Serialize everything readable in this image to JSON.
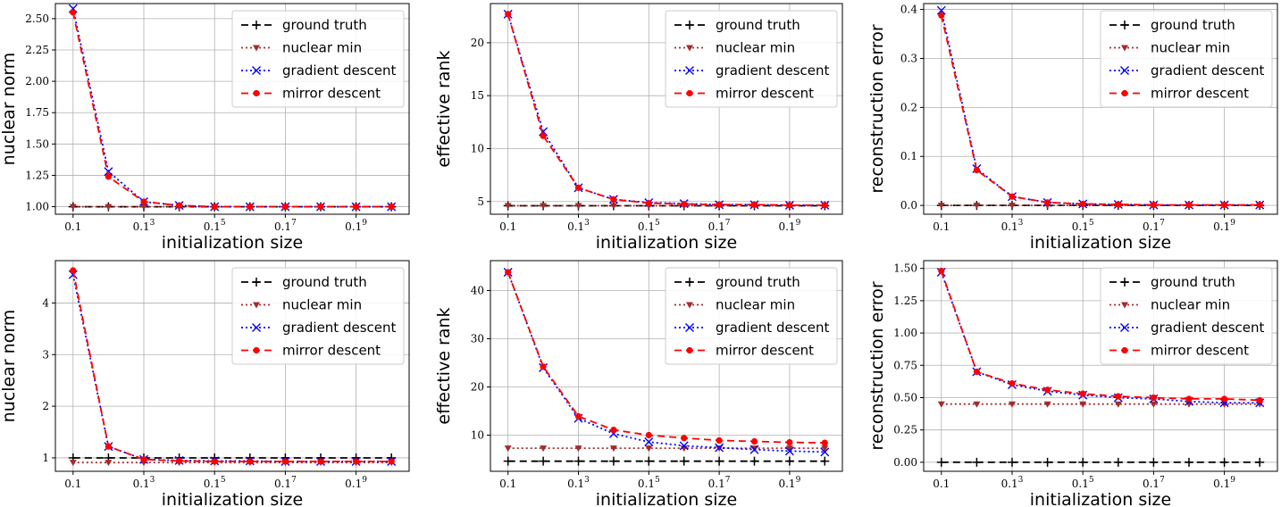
{
  "figure": {
    "legend_location": "top-right",
    "grid": true
  },
  "series_styles": [
    {
      "key": "gt",
      "color": "#000000",
      "dash": "8 5",
      "marker": "plus"
    },
    {
      "key": "nm",
      "color": "#a52a2a",
      "dash": "2 3",
      "marker": "triangle-down"
    },
    {
      "key": "gd",
      "color": "#0000ff",
      "dash": "2 3",
      "marker": "x"
    },
    {
      "key": "md",
      "color": "#ff0000",
      "dash": "8 5",
      "marker": "dot"
    }
  ],
  "chart_data": [
    {
      "type": "line",
      "xlabel": "initialization size",
      "ylabel": "nuclear norm",
      "xlim": [
        0.5,
        10.5
      ],
      "ylim": [
        0.94,
        2.62
      ],
      "yticks": [
        "1.00",
        "1.25",
        "1.50",
        "1.75",
        "2.00",
        "2.25",
        "2.50"
      ],
      "ytick_values": [
        1.0,
        1.25,
        1.5,
        1.75,
        2.0,
        2.25,
        2.5
      ],
      "xtick_values": [
        1,
        3,
        5,
        7,
        9
      ],
      "xticks": [
        {
          "base": "0.1",
          "exp": ""
        },
        {
          "base": "0.1",
          "exp": "3"
        },
        {
          "base": "0.1",
          "exp": "5"
        },
        {
          "base": "0.1",
          "exp": "7"
        },
        {
          "base": "0.1",
          "exp": "9"
        }
      ],
      "x": [
        1,
        2,
        3,
        4,
        5,
        6,
        7,
        8,
        9,
        10
      ],
      "series": [
        {
          "name": "ground truth",
          "values": [
            1.0,
            1.0,
            1.0,
            1.0,
            1.0,
            1.0,
            1.0,
            1.0,
            1.0,
            1.0
          ]
        },
        {
          "name": "nuclear min",
          "values": [
            1.0,
            1.0,
            1.0,
            1.0,
            1.0,
            1.0,
            1.0,
            1.0,
            1.0,
            1.0
          ]
        },
        {
          "name": "gradient descent",
          "values": [
            2.58,
            1.28,
            1.04,
            1.01,
            1.0,
            1.0,
            1.0,
            1.0,
            1.0,
            1.0
          ]
        },
        {
          "name": "mirror descent",
          "values": [
            2.55,
            1.24,
            1.04,
            1.01,
            1.0,
            1.0,
            1.0,
            1.0,
            1.0,
            1.0
          ]
        }
      ]
    },
    {
      "type": "line",
      "xlabel": "initialization size",
      "ylabel": "effective rank",
      "xlim": [
        0.5,
        10.5
      ],
      "ylim": [
        3.8,
        23.7
      ],
      "yticks": [
        "5",
        "10",
        "15",
        "20"
      ],
      "ytick_values": [
        5,
        10,
        15,
        20
      ],
      "xtick_values": [
        1,
        3,
        5,
        7,
        9
      ],
      "xticks": [
        {
          "base": "0.1",
          "exp": ""
        },
        {
          "base": "0.1",
          "exp": "3"
        },
        {
          "base": "0.1",
          "exp": "5"
        },
        {
          "base": "0.1",
          "exp": "7"
        },
        {
          "base": "0.1",
          "exp": "9"
        }
      ],
      "x": [
        1,
        2,
        3,
        4,
        5,
        6,
        7,
        8,
        9,
        10
      ],
      "series": [
        {
          "name": "ground truth",
          "values": [
            4.6,
            4.6,
            4.6,
            4.6,
            4.6,
            4.6,
            4.6,
            4.6,
            4.6,
            4.6
          ]
        },
        {
          "name": "nuclear min",
          "values": [
            4.6,
            4.6,
            4.6,
            4.6,
            4.6,
            4.6,
            4.6,
            4.6,
            4.6,
            4.6
          ]
        },
        {
          "name": "gradient descent",
          "values": [
            22.7,
            11.6,
            6.3,
            5.2,
            4.9,
            4.8,
            4.7,
            4.7,
            4.65,
            4.65
          ]
        },
        {
          "name": "mirror descent",
          "values": [
            22.7,
            11.2,
            6.3,
            5.2,
            4.85,
            4.75,
            4.7,
            4.7,
            4.65,
            4.65
          ]
        }
      ]
    },
    {
      "type": "line",
      "xlabel": "initialization size",
      "ylabel": "reconstruction error",
      "xlim": [
        0.5,
        10.5
      ],
      "ylim": [
        -0.018,
        0.412
      ],
      "yticks": [
        "0.0",
        "0.1",
        "0.2",
        "0.3",
        "0.4"
      ],
      "ytick_values": [
        0.0,
        0.1,
        0.2,
        0.3,
        0.4
      ],
      "xtick_values": [
        1,
        3,
        5,
        7,
        9
      ],
      "xticks": [
        {
          "base": "0.1",
          "exp": ""
        },
        {
          "base": "0.1",
          "exp": "3"
        },
        {
          "base": "0.1",
          "exp": "5"
        },
        {
          "base": "0.1",
          "exp": "7"
        },
        {
          "base": "0.1",
          "exp": "9"
        }
      ],
      "x": [
        1,
        2,
        3,
        4,
        5,
        6,
        7,
        8,
        9,
        10
      ],
      "series": [
        {
          "name": "ground truth",
          "values": [
            0.0,
            0.0,
            0.0,
            0.0,
            0.0,
            0.0,
            0.0,
            0.0,
            0.0,
            0.0
          ]
        },
        {
          "name": "nuclear min",
          "values": [
            0.0,
            0.0,
            0.0,
            0.0,
            0.0,
            0.0,
            0.0,
            0.0,
            0.0,
            0.0
          ]
        },
        {
          "name": "gradient descent",
          "values": [
            0.398,
            0.075,
            0.018,
            0.006,
            0.003,
            0.002,
            0.001,
            0.001,
            0.001,
            0.001
          ]
        },
        {
          "name": "mirror descent",
          "values": [
            0.388,
            0.072,
            0.018,
            0.006,
            0.003,
            0.002,
            0.001,
            0.001,
            0.001,
            0.001
          ]
        }
      ]
    },
    {
      "type": "line",
      "xlabel": "initialization size",
      "ylabel": "nuclear norm",
      "xlim": [
        0.5,
        10.5
      ],
      "ylim": [
        0.74,
        4.82
      ],
      "yticks": [
        "1",
        "2",
        "3",
        "4"
      ],
      "ytick_values": [
        1,
        2,
        3,
        4
      ],
      "xtick_values": [
        1,
        3,
        5,
        7,
        9
      ],
      "xticks": [
        {
          "base": "0.1",
          "exp": ""
        },
        {
          "base": "0.1",
          "exp": "3"
        },
        {
          "base": "0.1",
          "exp": "5"
        },
        {
          "base": "0.1",
          "exp": "7"
        },
        {
          "base": "0.1",
          "exp": "9"
        }
      ],
      "x": [
        1,
        2,
        3,
        4,
        5,
        6,
        7,
        8,
        9,
        10
      ],
      "series": [
        {
          "name": "ground truth",
          "values": [
            1.0,
            1.0,
            1.0,
            1.0,
            1.0,
            1.0,
            1.0,
            1.0,
            1.0,
            1.0
          ]
        },
        {
          "name": "nuclear min",
          "values": [
            0.91,
            0.91,
            0.91,
            0.91,
            0.91,
            0.91,
            0.91,
            0.91,
            0.91,
            0.91
          ]
        },
        {
          "name": "gradient descent",
          "values": [
            4.55,
            1.22,
            0.97,
            0.95,
            0.94,
            0.94,
            0.93,
            0.93,
            0.93,
            0.93
          ]
        },
        {
          "name": "mirror descent",
          "values": [
            4.63,
            1.22,
            0.97,
            0.94,
            0.93,
            0.93,
            0.93,
            0.93,
            0.93,
            0.93
          ]
        }
      ]
    },
    {
      "type": "line",
      "xlabel": "initialization size",
      "ylabel": "effective rank",
      "xlim": [
        0.5,
        10.5
      ],
      "ylim": [
        2.5,
        46.2
      ],
      "yticks": [
        "10",
        "20",
        "30",
        "40"
      ],
      "ytick_values": [
        10,
        20,
        30,
        40
      ],
      "xtick_values": [
        1,
        3,
        5,
        7,
        9
      ],
      "xticks": [
        {
          "base": "0.1",
          "exp": ""
        },
        {
          "base": "0.1",
          "exp": "3"
        },
        {
          "base": "0.1",
          "exp": "5"
        },
        {
          "base": "0.1",
          "exp": "7"
        },
        {
          "base": "0.1",
          "exp": "9"
        }
      ],
      "x": [
        1,
        2,
        3,
        4,
        5,
        6,
        7,
        8,
        9,
        10
      ],
      "series": [
        {
          "name": "ground truth",
          "values": [
            4.6,
            4.6,
            4.6,
            4.6,
            4.6,
            4.6,
            4.6,
            4.6,
            4.6,
            4.6
          ]
        },
        {
          "name": "nuclear min",
          "values": [
            7.3,
            7.3,
            7.3,
            7.3,
            7.3,
            7.3,
            7.3,
            7.3,
            7.3,
            7.3
          ]
        },
        {
          "name": "gradient descent",
          "values": [
            43.8,
            24.0,
            13.5,
            10.3,
            8.6,
            7.8,
            7.4,
            7.0,
            6.7,
            6.5
          ]
        },
        {
          "name": "mirror descent",
          "values": [
            43.8,
            24.2,
            13.9,
            11.1,
            10.0,
            9.4,
            8.9,
            8.7,
            8.5,
            8.4
          ]
        }
      ]
    },
    {
      "type": "line",
      "xlabel": "initialization size",
      "ylabel": "reconstruction error",
      "xlim": [
        0.5,
        10.5
      ],
      "ylim": [
        -0.07,
        1.56
      ],
      "yticks": [
        "0.00",
        "0.25",
        "0.50",
        "0.75",
        "1.00",
        "1.25",
        "1.50"
      ],
      "ytick_values": [
        0.0,
        0.25,
        0.5,
        0.75,
        1.0,
        1.25,
        1.5
      ],
      "xtick_values": [
        1,
        3,
        5,
        7,
        9
      ],
      "xticks": [
        {
          "base": "0.1",
          "exp": ""
        },
        {
          "base": "0.1",
          "exp": "3"
        },
        {
          "base": "0.1",
          "exp": "5"
        },
        {
          "base": "0.1",
          "exp": "7"
        },
        {
          "base": "0.1",
          "exp": "9"
        }
      ],
      "x": [
        1,
        2,
        3,
        4,
        5,
        6,
        7,
        8,
        9,
        10
      ],
      "series": [
        {
          "name": "ground truth",
          "values": [
            0.0,
            0.0,
            0.0,
            0.0,
            0.0,
            0.0,
            0.0,
            0.0,
            0.0,
            0.0
          ]
        },
        {
          "name": "nuclear min",
          "values": [
            0.45,
            0.45,
            0.45,
            0.45,
            0.45,
            0.45,
            0.45,
            0.45,
            0.45,
            0.45
          ]
        },
        {
          "name": "gradient descent",
          "values": [
            1.47,
            0.7,
            0.6,
            0.55,
            0.52,
            0.5,
            0.49,
            0.47,
            0.46,
            0.46
          ]
        },
        {
          "name": "mirror descent",
          "values": [
            1.48,
            0.7,
            0.61,
            0.56,
            0.53,
            0.51,
            0.5,
            0.49,
            0.49,
            0.48
          ]
        }
      ]
    }
  ]
}
